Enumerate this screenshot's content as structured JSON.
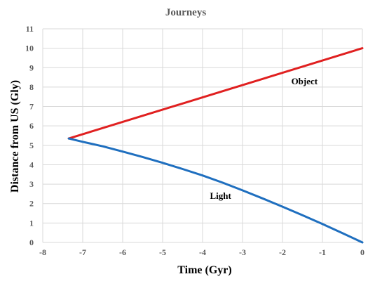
{
  "chart_data": {
    "type": "line",
    "title": "Journeys",
    "xlabel": "Time (Gyr)",
    "ylabel": "Distance from US (Gly)",
    "xlim": [
      -8,
      0
    ],
    "ylim": [
      0,
      11
    ],
    "x_ticks": [
      -8,
      -7,
      -6,
      -5,
      -4,
      -3,
      -2,
      -1,
      0
    ],
    "y_ticks": [
      0,
      1,
      2,
      3,
      4,
      5,
      6,
      7,
      8,
      9,
      10,
      11
    ],
    "grid": true,
    "series": [
      {
        "name": "Object",
        "color": "#e02020",
        "x": [
          -7.35,
          0
        ],
        "y": [
          5.35,
          10.0
        ]
      },
      {
        "name": "Light",
        "color": "#1f6fbf",
        "x": [
          -7.35,
          -7.0,
          -6.5,
          -6.0,
          -5.5,
          -5.0,
          -4.5,
          -4.0,
          -3.5,
          -3.0,
          -2.5,
          -2.0,
          -1.5,
          -1.0,
          -0.5,
          0
        ],
        "y": [
          5.35,
          5.18,
          4.95,
          4.68,
          4.4,
          4.1,
          3.78,
          3.45,
          3.08,
          2.68,
          2.27,
          1.84,
          1.4,
          0.95,
          0.48,
          0.0
        ]
      }
    ]
  }
}
